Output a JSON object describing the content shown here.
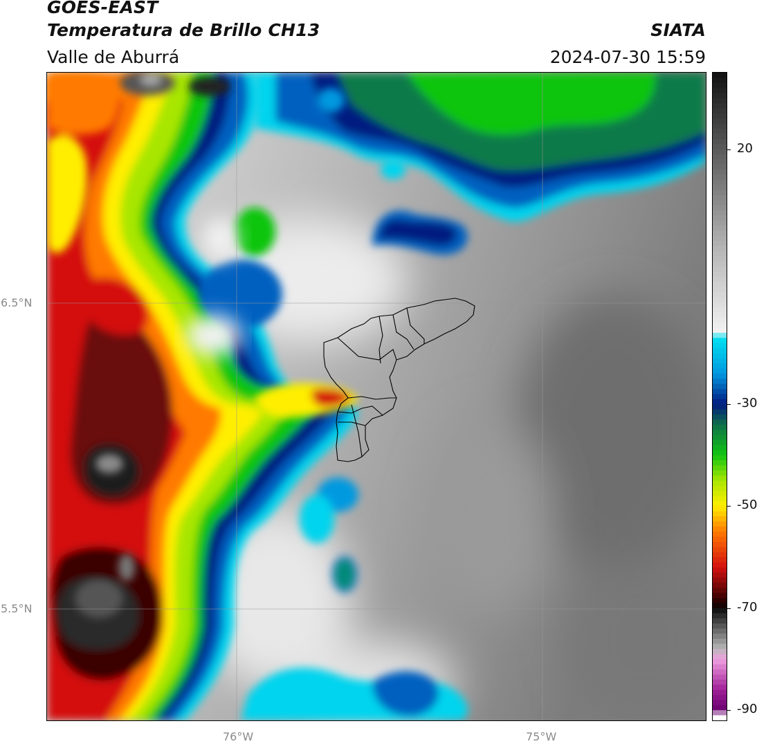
{
  "header": {
    "title_line1": "GOES-EAST",
    "title_line2": "Temperatura de Brillo CH13",
    "source": "SIATA",
    "region": "Valle de Aburrá",
    "datetime": "2024-07-30 15:59"
  },
  "axes": {
    "lat_ticks": [
      "6.5°N",
      "5.5°N"
    ],
    "lon_ticks": [
      "76°W",
      "75°W"
    ],
    "lat_values": [
      6.5,
      5.5
    ],
    "lon_values": [
      -76.0,
      -75.0
    ],
    "lon_range": [
      -76.62,
      -74.46
    ],
    "lat_range": [
      5.13,
      7.25
    ],
    "grid": true
  },
  "colorbar": {
    "min": -92,
    "max": 35,
    "tick_values": [
      20,
      -30,
      -50,
      -70,
      -90
    ],
    "tick_labels": [
      "20",
      "-30",
      "-50",
      "-70",
      "-90"
    ],
    "stops": [
      {
        "value": 35,
        "color": "#111111"
      },
      {
        "value": 20,
        "color": "#5a5a5a"
      },
      {
        "value": 0,
        "color": "#b8b8b8"
      },
      {
        "value": -16,
        "color": "#f2f2f2"
      },
      {
        "value": -17,
        "color": "#00e0f0"
      },
      {
        "value": -24,
        "color": "#0099e0"
      },
      {
        "value": -30,
        "color": "#001a80"
      },
      {
        "value": -34,
        "color": "#0f6f4a"
      },
      {
        "value": -40,
        "color": "#11c511"
      },
      {
        "value": -45,
        "color": "#a8e600"
      },
      {
        "value": -50,
        "color": "#ffee00"
      },
      {
        "value": -55,
        "color": "#ff7a00"
      },
      {
        "value": -62,
        "color": "#d41010"
      },
      {
        "value": -69,
        "color": "#230000"
      },
      {
        "value": -70,
        "color": "#0a0a0a"
      },
      {
        "value": -78,
        "color": "#b8b8b8"
      },
      {
        "value": -80,
        "color": "#f0a0e0"
      },
      {
        "value": -86,
        "color": "#a02098"
      },
      {
        "value": -90,
        "color": "#6a0070"
      },
      {
        "value": -91,
        "color": "#ffffff"
      }
    ]
  },
  "legend_colors": {
    "warm_surface": "#8f8f8f",
    "cloud_edge_cyan": "#00d4ee",
    "deep_convection_red": "#d41010",
    "overshooting_top_dark": "#2a2a2a"
  }
}
